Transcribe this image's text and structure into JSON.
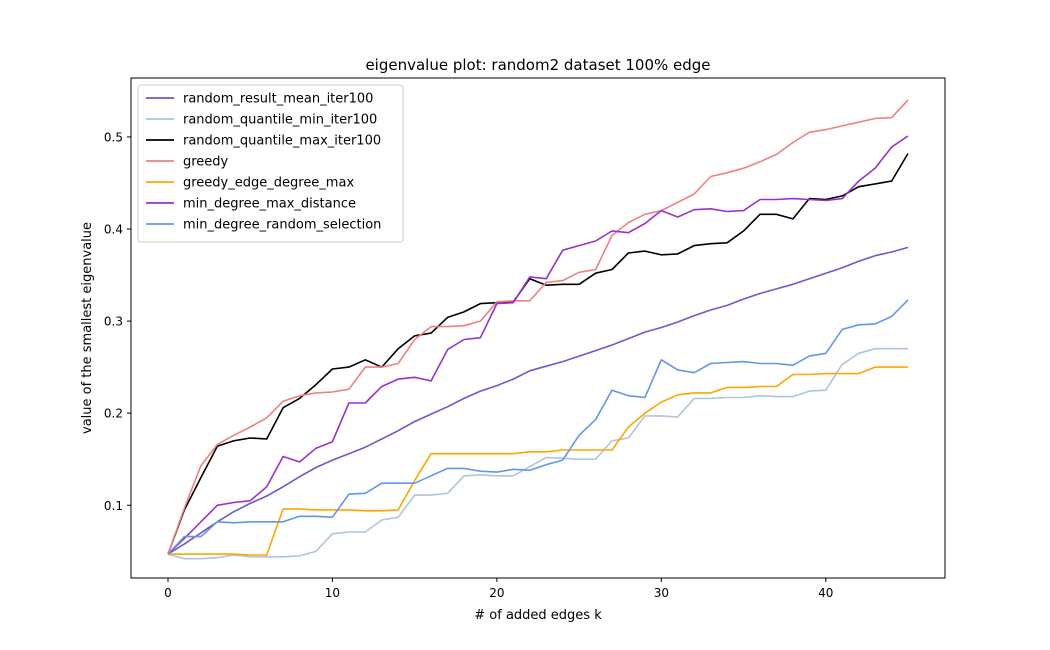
{
  "chart_data": {
    "type": "line",
    "title": "eigenvalue plot: random2 dataset 100% edge",
    "xlabel": "# of added edges k",
    "ylabel": "value of the smallest eigenvalue",
    "xlim": [
      -2.25,
      47.25
    ],
    "ylim": [
      0.021,
      0.564
    ],
    "xticks": [
      0,
      10,
      20,
      30,
      40
    ],
    "xtick_labels": [
      "0",
      "10",
      "20",
      "30",
      "40"
    ],
    "yticks": [
      0.1,
      0.2,
      0.3,
      0.4,
      0.5
    ],
    "ytick_labels": [
      "0.1",
      "0.2",
      "0.3",
      "0.4",
      "0.5"
    ],
    "grid": false,
    "legend_position": "top-left",
    "x": [
      0,
      1,
      2,
      3,
      4,
      5,
      6,
      7,
      8,
      9,
      10,
      11,
      12,
      13,
      14,
      15,
      16,
      17,
      18,
      19,
      20,
      21,
      22,
      23,
      24,
      25,
      26,
      27,
      28,
      29,
      30,
      31,
      32,
      33,
      34,
      35,
      36,
      37,
      38,
      39,
      40,
      41,
      42,
      43,
      44,
      45
    ],
    "series": [
      {
        "name": "random_result_mean_iter100",
        "color": "#6a5acd",
        "values": [
          0.047,
          0.058,
          0.07,
          0.082,
          0.093,
          0.102,
          0.11,
          0.12,
          0.131,
          0.141,
          0.149,
          0.156,
          0.163,
          0.172,
          0.181,
          0.191,
          0.199,
          0.207,
          0.216,
          0.224,
          0.23,
          0.237,
          0.246,
          0.251,
          0.256,
          0.262,
          0.268,
          0.274,
          0.281,
          0.288,
          0.293,
          0.299,
          0.306,
          0.312,
          0.317,
          0.324,
          0.33,
          0.335,
          0.34,
          0.346,
          0.352,
          0.358,
          0.365,
          0.371,
          0.375,
          0.38
        ]
      },
      {
        "name": "random_quantile_min_iter100",
        "color": "#b0c4de",
        "values": [
          0.047,
          0.042,
          0.042,
          0.043,
          0.046,
          0.044,
          0.044,
          0.044,
          0.045,
          0.05,
          0.069,
          0.071,
          0.071,
          0.084,
          0.087,
          0.111,
          0.111,
          0.113,
          0.132,
          0.133,
          0.132,
          0.132,
          0.142,
          0.152,
          0.151,
          0.15,
          0.15,
          0.17,
          0.173,
          0.197,
          0.197,
          0.196,
          0.216,
          0.216,
          0.217,
          0.217,
          0.219,
          0.218,
          0.218,
          0.224,
          0.225,
          0.253,
          0.265,
          0.27,
          0.27,
          0.27
        ]
      },
      {
        "name": "random_quantile_max_iter100",
        "color": "#000000",
        "values": [
          0.047,
          0.095,
          0.13,
          0.164,
          0.17,
          0.173,
          0.172,
          0.206,
          0.216,
          0.231,
          0.248,
          0.25,
          0.258,
          0.25,
          0.27,
          0.284,
          0.287,
          0.304,
          0.31,
          0.319,
          0.32,
          0.321,
          0.346,
          0.339,
          0.34,
          0.34,
          0.352,
          0.356,
          0.374,
          0.376,
          0.372,
          0.373,
          0.382,
          0.384,
          0.385,
          0.398,
          0.416,
          0.416,
          0.411,
          0.433,
          0.432,
          0.436,
          0.446,
          0.449,
          0.452,
          0.482
        ]
      },
      {
        "name": "greedy",
        "color": "#f08080",
        "values": [
          0.047,
          0.097,
          0.143,
          0.166,
          0.176,
          0.185,
          0.195,
          0.213,
          0.219,
          0.222,
          0.223,
          0.226,
          0.25,
          0.25,
          0.254,
          0.28,
          0.294,
          0.294,
          0.295,
          0.3,
          0.321,
          0.322,
          0.322,
          0.342,
          0.344,
          0.353,
          0.356,
          0.393,
          0.407,
          0.416,
          0.42,
          0.429,
          0.438,
          0.457,
          0.461,
          0.466,
          0.473,
          0.481,
          0.494,
          0.505,
          0.508,
          0.512,
          0.516,
          0.52,
          0.521,
          0.54
        ]
      },
      {
        "name": "greedy_edge_degree_max",
        "color": "#ffa500",
        "values": [
          0.047,
          0.047,
          0.047,
          0.047,
          0.047,
          0.046,
          0.046,
          0.096,
          0.096,
          0.095,
          0.095,
          0.095,
          0.094,
          0.094,
          0.095,
          0.127,
          0.156,
          0.156,
          0.156,
          0.156,
          0.156,
          0.156,
          0.158,
          0.158,
          0.16,
          0.16,
          0.16,
          0.16,
          0.185,
          0.2,
          0.212,
          0.22,
          0.222,
          0.222,
          0.228,
          0.228,
          0.229,
          0.229,
          0.242,
          0.242,
          0.243,
          0.243,
          0.243,
          0.25,
          0.25,
          0.25
        ]
      },
      {
        "name": "min_degree_max_distance",
        "color": "#9932cc",
        "values": [
          0.047,
          0.064,
          0.082,
          0.1,
          0.103,
          0.105,
          0.12,
          0.153,
          0.147,
          0.162,
          0.169,
          0.211,
          0.211,
          0.229,
          0.237,
          0.239,
          0.235,
          0.269,
          0.28,
          0.282,
          0.319,
          0.32,
          0.348,
          0.346,
          0.377,
          0.382,
          0.387,
          0.398,
          0.396,
          0.406,
          0.42,
          0.413,
          0.421,
          0.422,
          0.419,
          0.42,
          0.432,
          0.432,
          0.433,
          0.432,
          0.431,
          0.433,
          0.452,
          0.466,
          0.489,
          0.501
        ]
      },
      {
        "name": "min_degree_random_selection",
        "color": "#6495ed",
        "values": [
          0.047,
          0.066,
          0.066,
          0.082,
          0.081,
          0.082,
          0.082,
          0.082,
          0.088,
          0.088,
          0.087,
          0.112,
          0.113,
          0.124,
          0.124,
          0.124,
          0.132,
          0.14,
          0.14,
          0.137,
          0.136,
          0.139,
          0.138,
          0.144,
          0.149,
          0.176,
          0.193,
          0.225,
          0.219,
          0.217,
          0.258,
          0.247,
          0.244,
          0.254,
          0.255,
          0.256,
          0.254,
          0.254,
          0.252,
          0.262,
          0.265,
          0.291,
          0.296,
          0.297,
          0.305,
          0.323
        ]
      }
    ]
  }
}
